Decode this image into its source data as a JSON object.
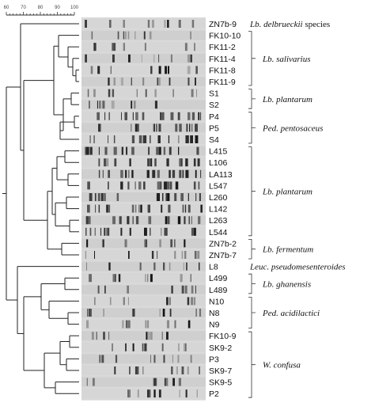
{
  "scale": {
    "ticks": [
      "60",
      "70",
      "80",
      "90",
      "100"
    ]
  },
  "strains": [
    "ZN7b-9",
    "FK10-10",
    "FK11-2",
    "FK11-4",
    "FK11-8",
    "FK11-9",
    "S1",
    "S2",
    "P4",
    "P5",
    "S4",
    "L415",
    "L106",
    "LA113",
    "L547",
    "L260",
    "L142",
    "L263",
    "L544",
    "ZN7b-2",
    "ZN7b-7",
    "L8",
    "L499",
    "L489",
    "N10",
    "N8",
    "N9",
    "FK10-9",
    "SK9-2",
    "P3",
    "SK9-7",
    "SK9-5",
    "P2"
  ],
  "species_groups": [
    {
      "label_italic": "Lb. delbrueckii",
      "label_suffix": " species",
      "first": 0,
      "last": 0,
      "bracket": false
    },
    {
      "label_italic": "Lb. salivarius",
      "label_suffix": "",
      "first": 1,
      "last": 5,
      "bracket": true
    },
    {
      "label_italic": "Lb. plantarum",
      "label_suffix": "",
      "first": 6,
      "last": 7,
      "bracket": true
    },
    {
      "label_italic": "Ped. pentosaceus",
      "label_suffix": "",
      "first": 8,
      "last": 10,
      "bracket": true
    },
    {
      "label_italic": "Lb. plantarum",
      "label_suffix": "",
      "first": 11,
      "last": 18,
      "bracket": true
    },
    {
      "label_italic": "Lb. fermentum",
      "label_suffix": "",
      "first": 19,
      "last": 20,
      "bracket": true
    },
    {
      "label_italic": "Leuc. pseudomesenteroides",
      "label_suffix": "",
      "first": 21,
      "last": 21,
      "bracket": false
    },
    {
      "label_italic": "Lb. ghanensis",
      "label_suffix": "",
      "first": 22,
      "last": 23,
      "bracket": true
    },
    {
      "label_italic": "Ped. acidilactici",
      "label_suffix": "",
      "first": 24,
      "last": 26,
      "bracket": true
    },
    {
      "label_italic": "W. confusa",
      "label_suffix": "",
      "first": 27,
      "last": 32,
      "bracket": true
    }
  ],
  "colors": {
    "gel_background": "#d9d9d9",
    "band_dark": "#1a1a1a",
    "tree_line": "#222222"
  }
}
